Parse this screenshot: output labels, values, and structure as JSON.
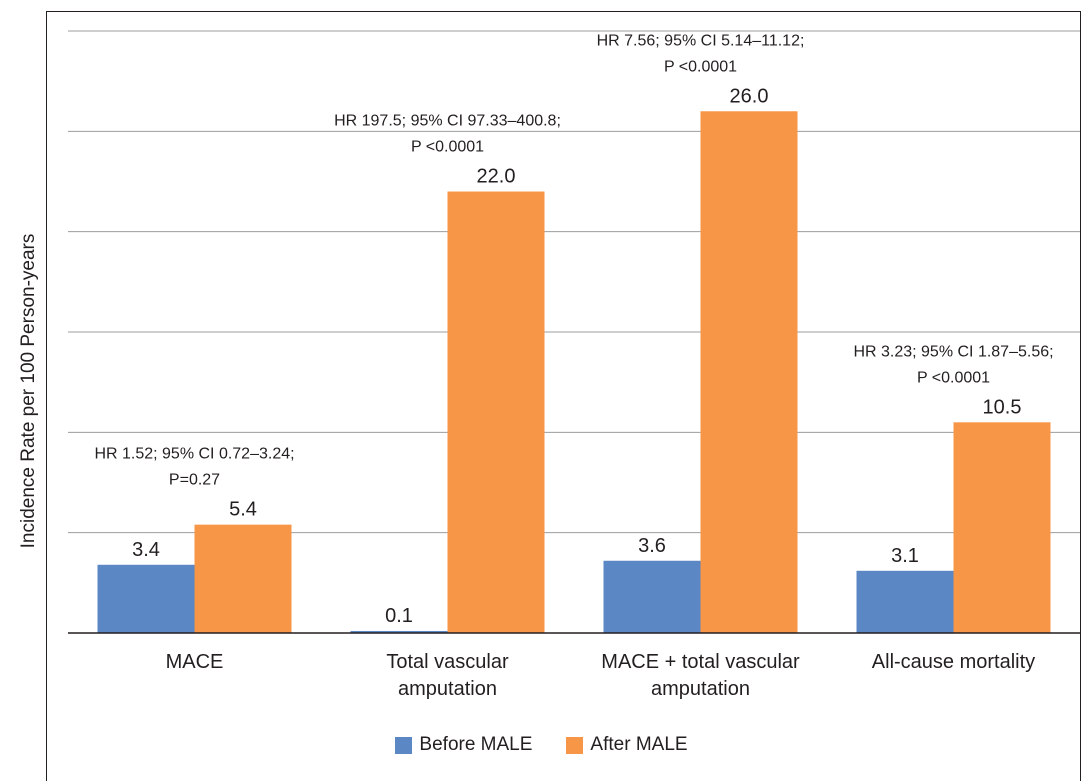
{
  "chart_data": {
    "type": "bar",
    "ylabel": "Incidence Rate per 100 Person-years",
    "ylim": [
      0,
      30
    ],
    "gridlines": [
      0,
      5,
      10,
      15,
      20,
      25,
      30
    ],
    "grid": "horizontal",
    "legend_position": "bottom",
    "categories": [
      [
        "MACE"
      ],
      [
        "Total vascular",
        "amputation"
      ],
      [
        "MACE + total vascular",
        "amputation"
      ],
      [
        "All-cause mortality"
      ]
    ],
    "series": [
      {
        "name": "Before MALE",
        "color": "#5b87c5",
        "values": [
          3.4,
          0.1,
          3.6,
          3.1
        ],
        "labels": [
          "3.4",
          "0.1",
          "3.6",
          "3.1"
        ]
      },
      {
        "name": "After MALE",
        "color": "#f79646",
        "values": [
          5.4,
          22.0,
          26.0,
          10.5
        ],
        "labels": [
          "5.4",
          "22.0",
          "26.0",
          "10.5"
        ]
      }
    ],
    "annotations": [
      [
        "HR 1.52; 95% CI 0.72–3.24;",
        "P=0.27"
      ],
      [
        "HR 197.5; 95% CI 97.33–400.8;",
        "P <0.0001"
      ],
      [
        "HR 7.56; 95% CI 5.14–11.12;",
        "P <0.0001"
      ],
      [
        "HR 3.23; 95% CI 1.87–5.56;",
        "P <0.0001"
      ]
    ]
  }
}
